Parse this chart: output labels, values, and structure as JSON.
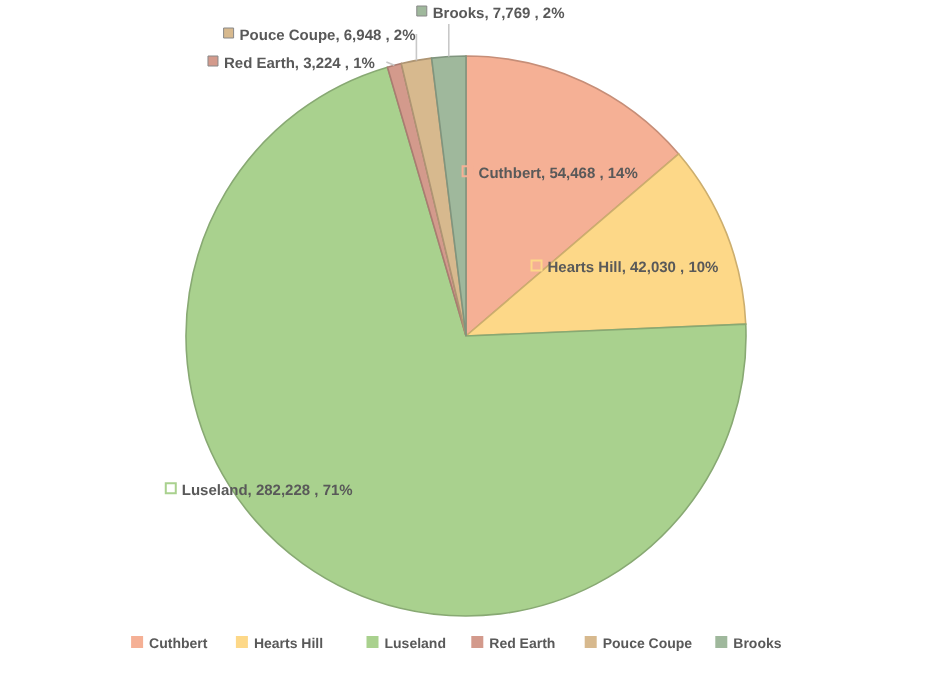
{
  "chart_data": {
    "type": "pie",
    "categories": [
      "Cuthbert",
      "Hearts Hill",
      "Luseland",
      "Red Earth",
      "Pouce Coupe",
      "Brooks"
    ],
    "values": [
      54468,
      42030,
      282228,
      3224,
      6948,
      7769
    ],
    "value_labels": [
      "Cuthbert,  54,468 , 14%",
      "Hearts Hill,  42,030 , 10%",
      "Luseland,  282,228 , 71%",
      "Red Earth,  3,224 , 1%",
      "Pouce Coupe,  6,948 , 2%",
      "Brooks,  7,769 , 2%"
    ],
    "colors": [
      "#f5b095",
      "#fdd888",
      "#a9d18e",
      "#d39a8c",
      "#d7b98e",
      "#9fb89c"
    ],
    "legend": "bottom"
  }
}
